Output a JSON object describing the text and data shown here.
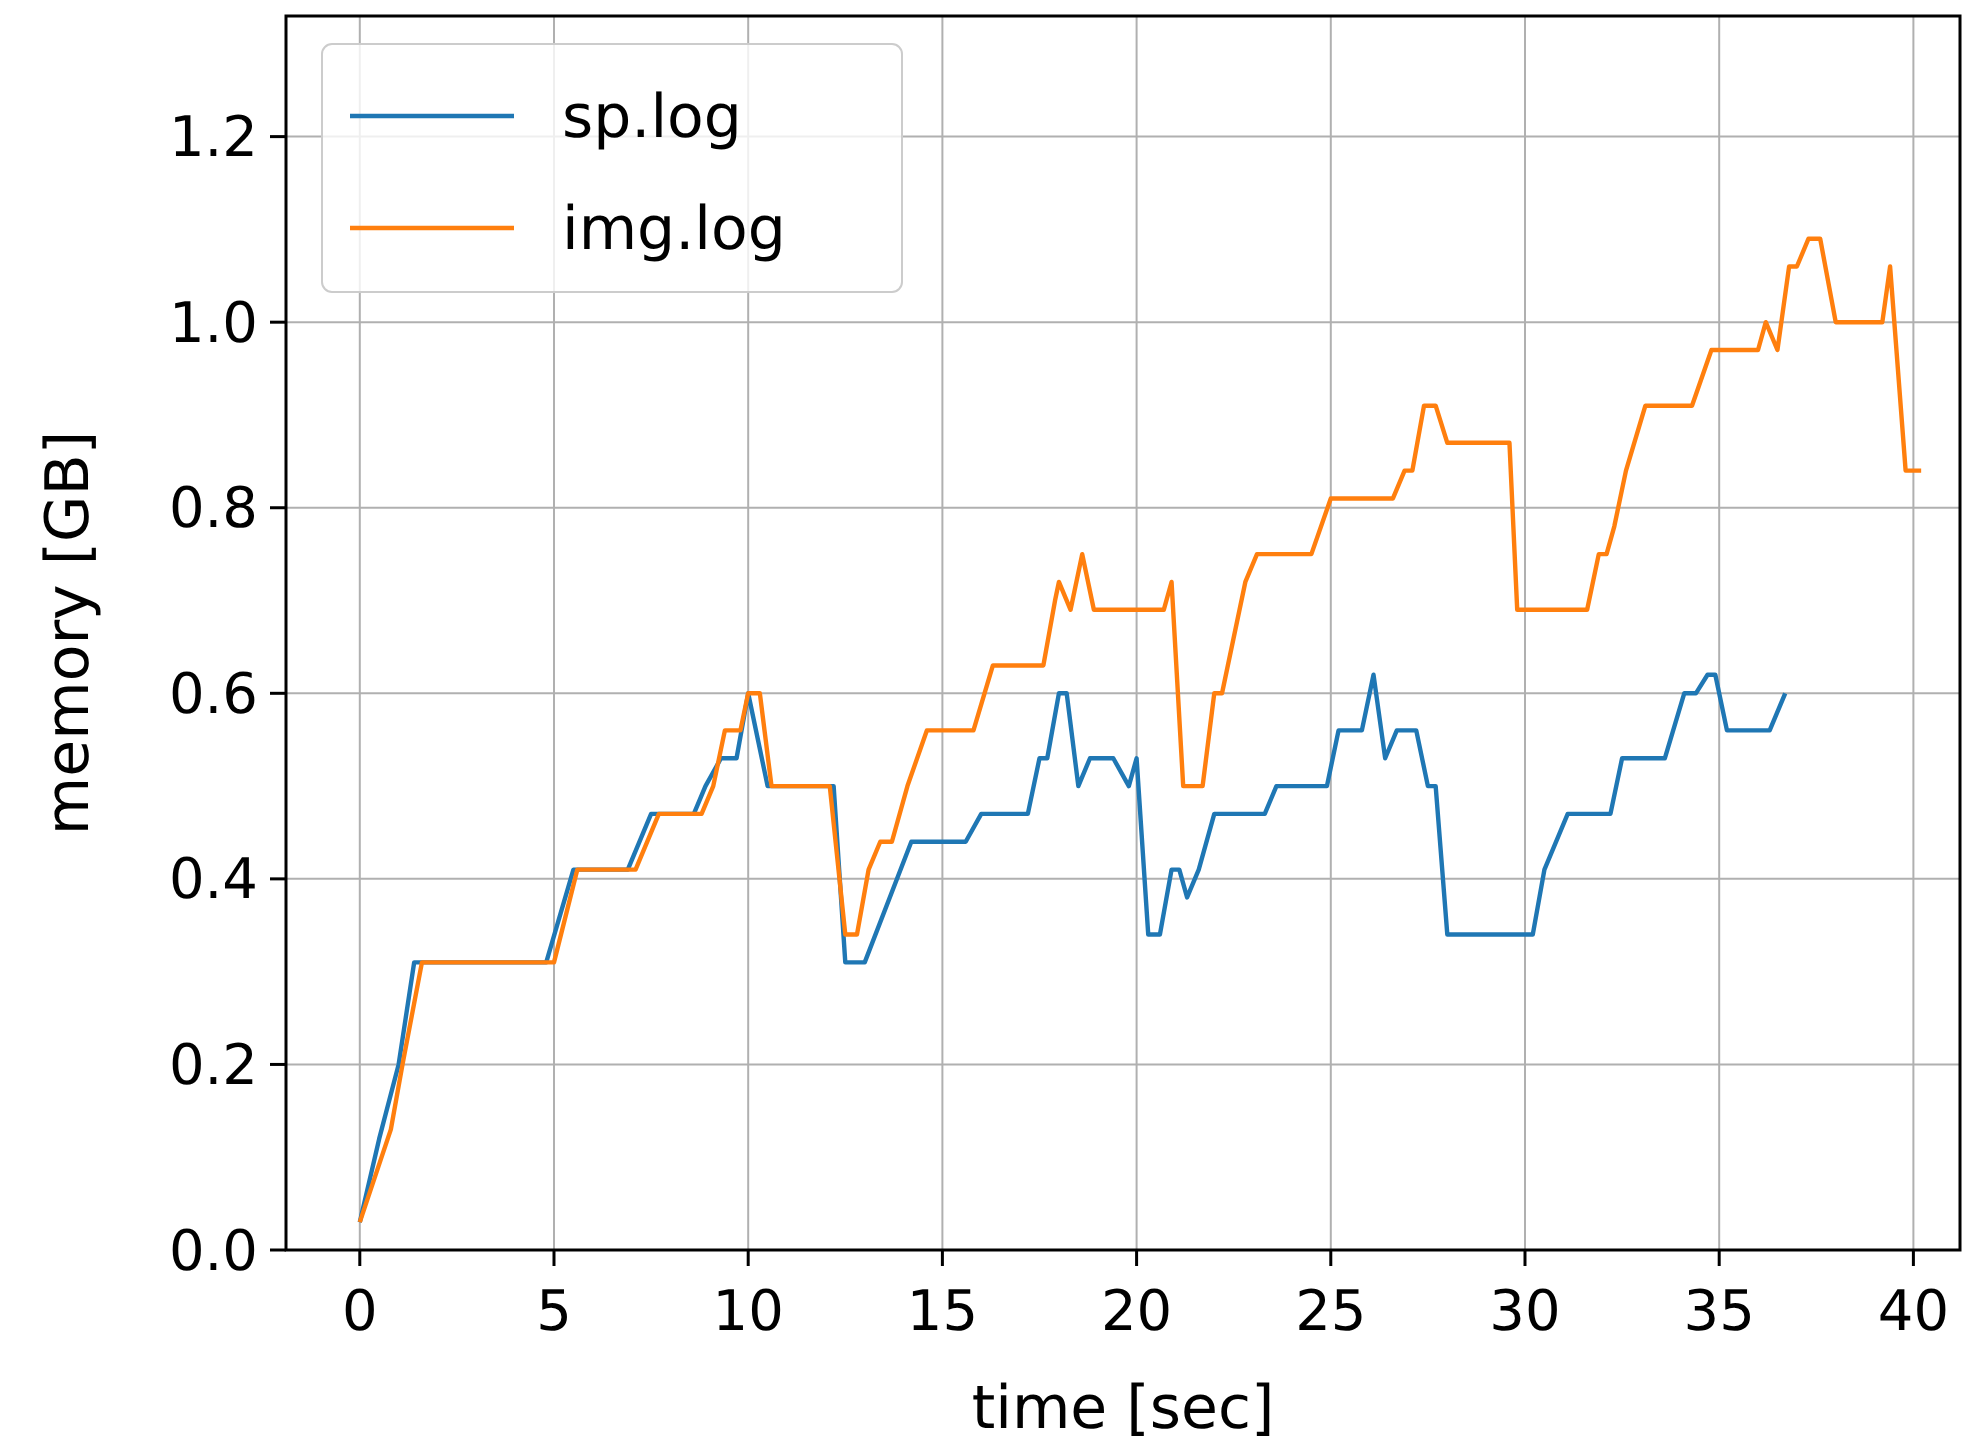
{
  "chart_data": {
    "type": "line",
    "xlabel": "time [sec]",
    "ylabel": "memory [GB]",
    "xlim": [
      -1.9,
      41.2
    ],
    "ylim": [
      0,
      1.33
    ],
    "xticks": [
      0,
      5,
      10,
      15,
      20,
      25,
      30,
      35,
      40
    ],
    "yticks": [
      {
        "value": 0,
        "label": "0.0"
      },
      {
        "value": 0.2,
        "label": "0.2"
      },
      {
        "value": 0.4,
        "label": "0.4"
      },
      {
        "value": 0.6,
        "label": "0.6"
      },
      {
        "value": 0.8,
        "label": "0.8"
      },
      {
        "value": 1.0,
        "label": "1.0"
      },
      {
        "value": 1.2,
        "label": "1.2"
      }
    ],
    "grid": true,
    "legend": "top left",
    "line_style": "solid",
    "marker": "none",
    "series": [
      {
        "name": "sp.log",
        "color": "#1f77b4",
        "x": [
          0,
          0.5,
          1.0,
          1.4,
          4.8,
          5.5,
          6.9,
          7.5,
          8.6,
          8.9,
          9.3,
          9.7,
          10.0,
          10.5,
          12.2,
          12.5,
          13.0,
          14.2,
          15.6,
          16.0,
          17.2,
          17.5,
          17.7,
          18.0,
          18.2,
          18.5,
          18.8,
          19.4,
          19.8,
          20.0,
          20.3,
          20.6,
          20.9,
          21.1,
          21.3,
          21.6,
          22.0,
          23.3,
          23.6,
          24.9,
          25.2,
          25.8,
          26.1,
          26.4,
          26.7,
          27.2,
          27.5,
          27.7,
          28.0,
          30.2,
          30.5,
          31.1,
          32.2,
          32.5,
          33.6,
          34.1,
          34.4,
          34.7,
          34.9,
          35.2,
          36.3,
          36.7
        ],
        "values": [
          0.03,
          0.12,
          0.2,
          0.31,
          0.31,
          0.41,
          0.41,
          0.47,
          0.47,
          0.5,
          0.53,
          0.53,
          0.6,
          0.5,
          0.5,
          0.31,
          0.31,
          0.44,
          0.44,
          0.47,
          0.47,
          0.53,
          0.53,
          0.6,
          0.6,
          0.5,
          0.53,
          0.53,
          0.5,
          0.53,
          0.34,
          0.34,
          0.41,
          0.41,
          0.38,
          0.41,
          0.47,
          0.47,
          0.5,
          0.5,
          0.56,
          0.56,
          0.62,
          0.53,
          0.56,
          0.56,
          0.5,
          0.5,
          0.34,
          0.34,
          0.41,
          0.47,
          0.47,
          0.53,
          0.53,
          0.6,
          0.6,
          0.62,
          0.62,
          0.56,
          0.56,
          0.6
        ]
      },
      {
        "name": "img.log",
        "color": "#ff7f0e",
        "x": [
          0,
          0.8,
          1.1,
          1.6,
          5.0,
          5.6,
          7.1,
          7.7,
          8.8,
          9.1,
          9.4,
          9.8,
          10.0,
          10.3,
          10.6,
          12.1,
          12.5,
          12.8,
          13.1,
          13.4,
          13.7,
          14.1,
          14.6,
          15.8,
          16.3,
          17.6,
          17.9,
          18.0,
          18.3,
          18.6,
          18.9,
          20.7,
          20.9,
          21.2,
          21.7,
          22.0,
          22.2,
          22.8,
          23.1,
          24.5,
          25.0,
          26.6,
          26.9,
          27.1,
          27.4,
          27.7,
          28.0,
          29.6,
          29.8,
          31.6,
          31.9,
          32.1,
          32.3,
          32.6,
          33.1,
          34.3,
          34.8,
          36.0,
          36.2,
          36.5,
          36.8,
          37.0,
          37.3,
          37.6,
          38.0,
          39.2,
          39.4,
          39.8,
          40.2
        ],
        "values": [
          0.03,
          0.13,
          0.2,
          0.31,
          0.31,
          0.41,
          0.41,
          0.47,
          0.47,
          0.5,
          0.56,
          0.56,
          0.6,
          0.6,
          0.5,
          0.5,
          0.34,
          0.34,
          0.41,
          0.44,
          0.44,
          0.5,
          0.56,
          0.56,
          0.63,
          0.63,
          0.7,
          0.72,
          0.69,
          0.75,
          0.69,
          0.69,
          0.72,
          0.5,
          0.5,
          0.6,
          0.6,
          0.72,
          0.75,
          0.75,
          0.81,
          0.81,
          0.84,
          0.84,
          0.91,
          0.91,
          0.87,
          0.87,
          0.69,
          0.69,
          0.75,
          0.75,
          0.78,
          0.84,
          0.91,
          0.91,
          0.97,
          0.97,
          1.0,
          0.97,
          1.06,
          1.06,
          1.09,
          1.09,
          1.0,
          1.0,
          1.06,
          0.84,
          0.84
        ]
      }
    ]
  }
}
